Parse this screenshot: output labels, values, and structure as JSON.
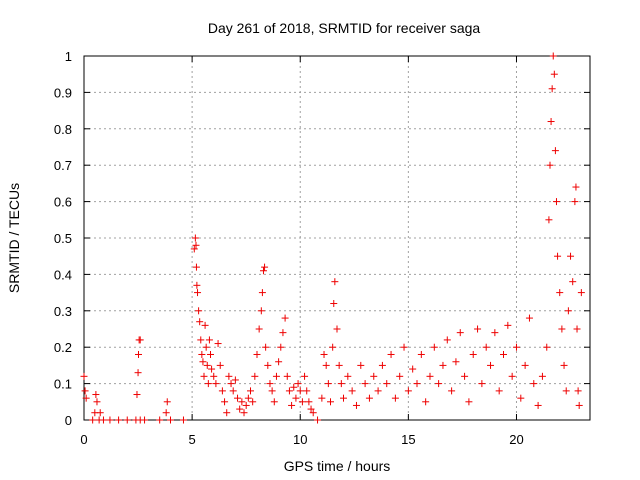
{
  "chart_data": {
    "type": "scatter",
    "title": "Day 261 of 2018, SRMTID for receiver saga",
    "xlabel": "GPS time / hours",
    "ylabel": "SRMTID / TECUs",
    "xlim": [
      0,
      23.4
    ],
    "ylim": [
      0,
      1
    ],
    "x_ticks": [
      0,
      5,
      10,
      15,
      20
    ],
    "y_ticks": [
      0,
      0.1,
      0.2,
      0.3,
      0.4,
      0.5,
      0.6,
      0.7,
      0.8,
      0.9,
      1
    ],
    "y_tick_labels": [
      "0",
      "0.1",
      "0.2",
      "0.3",
      "0.4",
      "0.5",
      "0.6",
      "0.7",
      "0.8",
      "0.9",
      "1"
    ],
    "x_tick_labels": [
      "0",
      "5",
      "10",
      "15",
      "20"
    ],
    "grid": true,
    "marker": "plus",
    "series": [
      {
        "name": "SRMTID",
        "color": "#ee0000",
        "points": [
          [
            0.0,
            0.12
          ],
          [
            0.05,
            0.08
          ],
          [
            0.1,
            0.06
          ],
          [
            0.4,
            0.0
          ],
          [
            0.5,
            0.02
          ],
          [
            0.55,
            0.07
          ],
          [
            0.6,
            0.05
          ],
          [
            0.7,
            0.0
          ],
          [
            0.75,
            0.02
          ],
          [
            0.9,
            0.0
          ],
          [
            1.2,
            0.0
          ],
          [
            1.6,
            0.0
          ],
          [
            2.0,
            0.0
          ],
          [
            2.4,
            0.0
          ],
          [
            2.45,
            0.07
          ],
          [
            2.5,
            0.13
          ],
          [
            2.52,
            0.18
          ],
          [
            2.55,
            0.22
          ],
          [
            2.6,
            0.22
          ],
          [
            2.6,
            0.0
          ],
          [
            2.8,
            0.0
          ],
          [
            3.5,
            0.0
          ],
          [
            3.8,
            0.02
          ],
          [
            3.85,
            0.05
          ],
          [
            4.0,
            0.0
          ],
          [
            4.6,
            0.0
          ],
          [
            5.1,
            0.47
          ],
          [
            5.15,
            0.5
          ],
          [
            5.18,
            0.48
          ],
          [
            5.2,
            0.42
          ],
          [
            5.22,
            0.37
          ],
          [
            5.25,
            0.35
          ],
          [
            5.3,
            0.3
          ],
          [
            5.35,
            0.27
          ],
          [
            5.4,
            0.22
          ],
          [
            5.45,
            0.18
          ],
          [
            5.5,
            0.16
          ],
          [
            5.55,
            0.12
          ],
          [
            5.6,
            0.26
          ],
          [
            5.65,
            0.2
          ],
          [
            5.7,
            0.15
          ],
          [
            5.75,
            0.1
          ],
          [
            5.8,
            0.22
          ],
          [
            5.85,
            0.18
          ],
          [
            5.9,
            0.14
          ],
          [
            6.0,
            0.12
          ],
          [
            6.1,
            0.1
          ],
          [
            6.2,
            0.21
          ],
          [
            6.3,
            0.15
          ],
          [
            6.4,
            0.08
          ],
          [
            6.5,
            0.05
          ],
          [
            6.6,
            0.02
          ],
          [
            6.7,
            0.12
          ],
          [
            6.8,
            0.1
          ],
          [
            6.9,
            0.08
          ],
          [
            7.0,
            0.11
          ],
          [
            7.1,
            0.06
          ],
          [
            7.2,
            0.03
          ],
          [
            7.3,
            0.05
          ],
          [
            7.4,
            0.02
          ],
          [
            7.5,
            0.04
          ],
          [
            7.6,
            0.06
          ],
          [
            7.7,
            0.08
          ],
          [
            7.8,
            0.05
          ],
          [
            7.9,
            0.12
          ],
          [
            8.0,
            0.18
          ],
          [
            8.1,
            0.25
          ],
          [
            8.2,
            0.3
          ],
          [
            8.25,
            0.35
          ],
          [
            8.3,
            0.41
          ],
          [
            8.35,
            0.42
          ],
          [
            8.4,
            0.2
          ],
          [
            8.5,
            0.15
          ],
          [
            8.6,
            0.1
          ],
          [
            8.7,
            0.08
          ],
          [
            8.8,
            0.05
          ],
          [
            8.9,
            0.12
          ],
          [
            9.0,
            0.16
          ],
          [
            9.1,
            0.2
          ],
          [
            9.2,
            0.24
          ],
          [
            9.3,
            0.28
          ],
          [
            9.4,
            0.12
          ],
          [
            9.5,
            0.08
          ],
          [
            9.6,
            0.04
          ],
          [
            9.7,
            0.09
          ],
          [
            9.8,
            0.06
          ],
          [
            9.9,
            0.1
          ],
          [
            10.0,
            0.08
          ],
          [
            10.1,
            0.05
          ],
          [
            10.2,
            0.12
          ],
          [
            10.3,
            0.08
          ],
          [
            10.4,
            0.05
          ],
          [
            10.5,
            0.03
          ],
          [
            10.6,
            0.02
          ],
          [
            10.8,
            0.0
          ],
          [
            11.0,
            0.06
          ],
          [
            11.1,
            0.18
          ],
          [
            11.2,
            0.15
          ],
          [
            11.3,
            0.1
          ],
          [
            11.4,
            0.05
          ],
          [
            11.5,
            0.2
          ],
          [
            11.55,
            0.32
          ],
          [
            11.6,
            0.38
          ],
          [
            11.7,
            0.25
          ],
          [
            11.8,
            0.15
          ],
          [
            11.9,
            0.1
          ],
          [
            12.0,
            0.06
          ],
          [
            12.2,
            0.12
          ],
          [
            12.4,
            0.08
          ],
          [
            12.6,
            0.04
          ],
          [
            12.8,
            0.15
          ],
          [
            13.0,
            0.1
          ],
          [
            13.2,
            0.06
          ],
          [
            13.4,
            0.12
          ],
          [
            13.6,
            0.08
          ],
          [
            13.8,
            0.15
          ],
          [
            14.0,
            0.1
          ],
          [
            14.2,
            0.18
          ],
          [
            14.4,
            0.06
          ],
          [
            14.6,
            0.12
          ],
          [
            14.8,
            0.2
          ],
          [
            15.0,
            0.08
          ],
          [
            15.2,
            0.14
          ],
          [
            15.4,
            0.1
          ],
          [
            15.6,
            0.18
          ],
          [
            15.8,
            0.05
          ],
          [
            16.0,
            0.12
          ],
          [
            16.2,
            0.2
          ],
          [
            16.4,
            0.1
          ],
          [
            16.6,
            0.15
          ],
          [
            16.8,
            0.22
          ],
          [
            17.0,
            0.08
          ],
          [
            17.2,
            0.16
          ],
          [
            17.4,
            0.24
          ],
          [
            17.6,
            0.12
          ],
          [
            17.8,
            0.05
          ],
          [
            18.0,
            0.18
          ],
          [
            18.2,
            0.25
          ],
          [
            18.4,
            0.1
          ],
          [
            18.6,
            0.2
          ],
          [
            18.8,
            0.15
          ],
          [
            19.0,
            0.24
          ],
          [
            19.2,
            0.08
          ],
          [
            19.4,
            0.18
          ],
          [
            19.6,
            0.26
          ],
          [
            19.8,
            0.12
          ],
          [
            20.0,
            0.2
          ],
          [
            20.2,
            0.06
          ],
          [
            20.4,
            0.15
          ],
          [
            20.6,
            0.28
          ],
          [
            20.8,
            0.1
          ],
          [
            21.0,
            0.04
          ],
          [
            21.2,
            0.12
          ],
          [
            21.4,
            0.2
          ],
          [
            21.5,
            0.55
          ],
          [
            21.55,
            0.7
          ],
          [
            21.6,
            0.82
          ],
          [
            21.65,
            0.91
          ],
          [
            21.7,
            1.0
          ],
          [
            21.75,
            0.95
          ],
          [
            21.8,
            0.74
          ],
          [
            21.85,
            0.6
          ],
          [
            21.9,
            0.45
          ],
          [
            22.0,
            0.35
          ],
          [
            22.1,
            0.25
          ],
          [
            22.2,
            0.15
          ],
          [
            22.3,
            0.08
          ],
          [
            22.4,
            0.3
          ],
          [
            22.5,
            0.45
          ],
          [
            22.6,
            0.38
          ],
          [
            22.7,
            0.6
          ],
          [
            22.75,
            0.64
          ],
          [
            22.8,
            0.25
          ],
          [
            22.85,
            0.08
          ],
          [
            22.9,
            0.04
          ],
          [
            23.0,
            0.35
          ]
        ]
      }
    ]
  }
}
